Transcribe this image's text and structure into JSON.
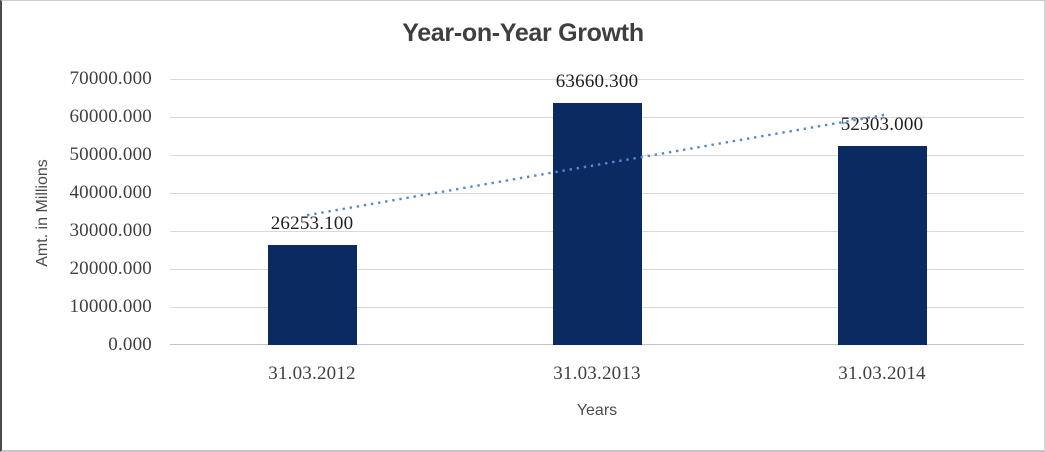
{
  "chart_data": {
    "type": "bar",
    "title": "Year-on-Year Growth",
    "categories": [
      "31.03.2012",
      "31.03.2013",
      "31.03.2014"
    ],
    "values": [
      26253.1,
      63660.3,
      52303.0
    ],
    "data_labels": [
      "26253.100",
      "63660.300",
      "52303.000"
    ],
    "xlabel": "Years",
    "ylabel": "Amt. in Millions",
    "ylim": [
      0,
      70000
    ],
    "ytick_interval": 10000,
    "yticks": [
      "70000.000",
      "60000.000",
      "50000.000",
      "40000.000",
      "30000.000",
      "20000.000",
      "10000.000",
      "0.000"
    ],
    "grid": true,
    "legend": false,
    "trendline": {
      "type": "linear",
      "style": "dotted",
      "color": "#5589cb"
    },
    "colors": {
      "bar": "#0c2a62",
      "gridline": "#d9d9d9",
      "axis_line": "#c3c3c3",
      "title_text": "#3f3f3f",
      "tick_text": "#404040",
      "data_label_text": "#1f1f1f",
      "axis_title_text": "#4d4d4d"
    }
  }
}
